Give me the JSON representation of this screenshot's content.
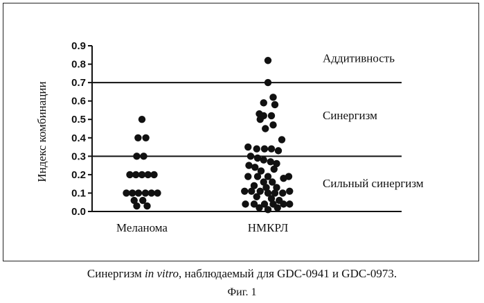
{
  "caption": {
    "prefix": "Синергизм ",
    "italic": "in vitro",
    "suffix": ", наблюдаемый для GDC-0941 и GDC-0973."
  },
  "figure_label": "Фиг. 1",
  "chart_data": {
    "type": "scatter",
    "ylabel": "Индекс комбинации",
    "xlabel": "",
    "ylim": [
      0,
      0.9
    ],
    "yticks": [
      "0.0",
      "0.1",
      "0.2",
      "0.3",
      "0.4",
      "0.5",
      "0.6",
      "0.7",
      "0.8",
      "0.9"
    ],
    "categories": [
      "Меланома",
      "НМКРЛ"
    ],
    "thresholds": [
      {
        "value": 0.7
      },
      {
        "value": 0.3
      }
    ],
    "zones": [
      {
        "label": "Аддитивность",
        "y": 0.83
      },
      {
        "label": "Синергизм",
        "y": 0.52
      },
      {
        "label": "Сильный синергизм",
        "y": 0.15
      }
    ],
    "series": [
      {
        "category": "Меланома",
        "points": [
          {
            "offset": 0.0,
            "y": 0.5
          },
          {
            "offset": -0.45,
            "y": 0.4
          },
          {
            "offset": 0.45,
            "y": 0.4
          },
          {
            "offset": -0.6,
            "y": 0.3
          },
          {
            "offset": 0.2,
            "y": 0.3
          },
          {
            "offset": -1.4,
            "y": 0.2
          },
          {
            "offset": -0.7,
            "y": 0.2
          },
          {
            "offset": 0.0,
            "y": 0.2
          },
          {
            "offset": 0.7,
            "y": 0.2
          },
          {
            "offset": 1.4,
            "y": 0.2
          },
          {
            "offset": -1.8,
            "y": 0.1
          },
          {
            "offset": -1.1,
            "y": 0.1
          },
          {
            "offset": -0.4,
            "y": 0.1
          },
          {
            "offset": 0.4,
            "y": 0.1
          },
          {
            "offset": 1.1,
            "y": 0.1
          },
          {
            "offset": 1.8,
            "y": 0.1
          },
          {
            "offset": -0.9,
            "y": 0.06
          },
          {
            "offset": 0.1,
            "y": 0.06
          },
          {
            "offset": -0.6,
            "y": 0.03
          },
          {
            "offset": 0.6,
            "y": 0.03
          }
        ]
      },
      {
        "category": "НМКРЛ",
        "points": [
          {
            "offset": 0.0,
            "y": 0.82
          },
          {
            "offset": 0.0,
            "y": 0.7
          },
          {
            "offset": 0.6,
            "y": 0.62
          },
          {
            "offset": -0.5,
            "y": 0.59
          },
          {
            "offset": 0.8,
            "y": 0.58
          },
          {
            "offset": -1.0,
            "y": 0.53
          },
          {
            "offset": -0.5,
            "y": 0.52
          },
          {
            "offset": 0.4,
            "y": 0.52
          },
          {
            "offset": -0.9,
            "y": 0.5
          },
          {
            "offset": 0.6,
            "y": 0.47
          },
          {
            "offset": -0.3,
            "y": 0.45
          },
          {
            "offset": 1.6,
            "y": 0.39
          },
          {
            "offset": -2.3,
            "y": 0.35
          },
          {
            "offset": -1.3,
            "y": 0.34
          },
          {
            "offset": -0.4,
            "y": 0.34
          },
          {
            "offset": 0.4,
            "y": 0.34
          },
          {
            "offset": 1.2,
            "y": 0.33
          },
          {
            "offset": -2.0,
            "y": 0.3
          },
          {
            "offset": -1.2,
            "y": 0.29
          },
          {
            "offset": -0.5,
            "y": 0.28
          },
          {
            "offset": 0.3,
            "y": 0.27
          },
          {
            "offset": 1.0,
            "y": 0.26
          },
          {
            "offset": -2.2,
            "y": 0.25
          },
          {
            "offset": -1.5,
            "y": 0.24
          },
          {
            "offset": 0.7,
            "y": 0.23
          },
          {
            "offset": -0.8,
            "y": 0.22
          },
          {
            "offset": -2.3,
            "y": 0.19
          },
          {
            "offset": -1.2,
            "y": 0.19
          },
          {
            "offset": 0.0,
            "y": 0.19
          },
          {
            "offset": 2.4,
            "y": 0.19
          },
          {
            "offset": 1.8,
            "y": 0.18
          },
          {
            "offset": -0.5,
            "y": 0.16
          },
          {
            "offset": 0.5,
            "y": 0.16
          },
          {
            "offset": -1.6,
            "y": 0.14
          },
          {
            "offset": 1.0,
            "y": 0.13
          },
          {
            "offset": -0.2,
            "y": 0.13
          },
          {
            "offset": -2.7,
            "y": 0.11
          },
          {
            "offset": -1.9,
            "y": 0.11
          },
          {
            "offset": -0.9,
            "y": 0.11
          },
          {
            "offset": 0.0,
            "y": 0.1
          },
          {
            "offset": 0.8,
            "y": 0.1
          },
          {
            "offset": 1.7,
            "y": 0.1
          },
          {
            "offset": 2.5,
            "y": 0.11
          },
          {
            "offset": -1.3,
            "y": 0.08
          },
          {
            "offset": 0.4,
            "y": 0.07
          },
          {
            "offset": 1.3,
            "y": 0.06
          },
          {
            "offset": -2.6,
            "y": 0.04
          },
          {
            "offset": -1.6,
            "y": 0.04
          },
          {
            "offset": -0.4,
            "y": 0.04
          },
          {
            "offset": 0.6,
            "y": 0.04
          },
          {
            "offset": 1.8,
            "y": 0.04
          },
          {
            "offset": 2.5,
            "y": 0.04
          },
          {
            "offset": -1.0,
            "y": 0.02
          },
          {
            "offset": 0.0,
            "y": 0.01
          },
          {
            "offset": 1.1,
            "y": 0.02
          }
        ]
      }
    ],
    "legend": "none",
    "grid": false
  }
}
